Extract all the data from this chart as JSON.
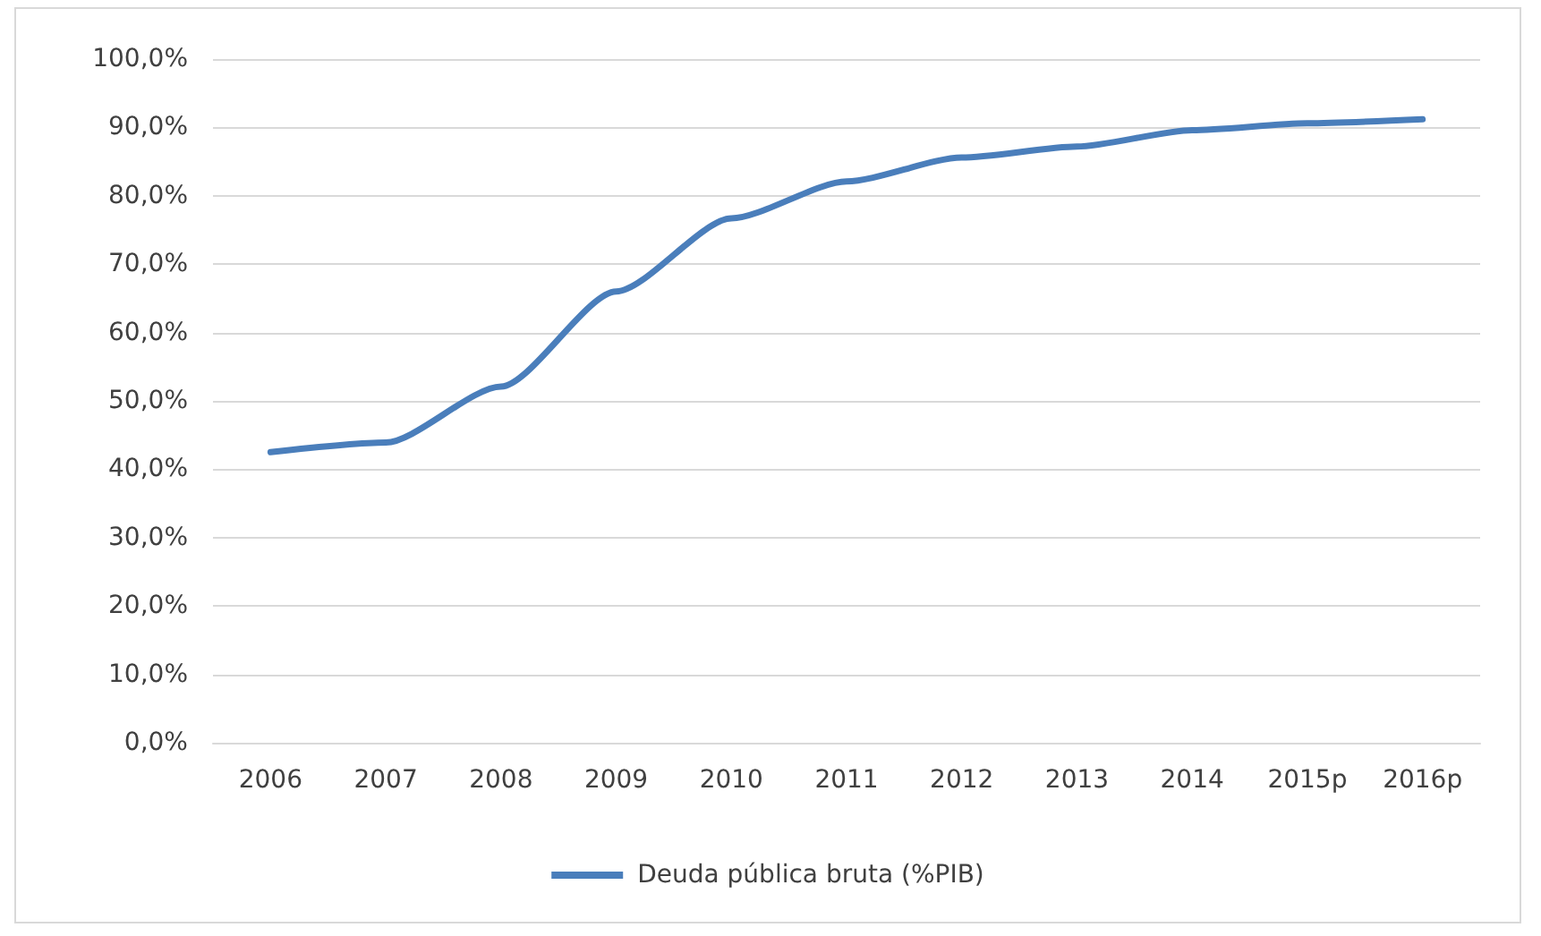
{
  "chart_data": {
    "type": "line",
    "categories": [
      "2006",
      "2007",
      "2008",
      "2009",
      "2010",
      "2011",
      "2012",
      "2013",
      "2014",
      "2015p",
      "2016p"
    ],
    "series": [
      {
        "name": "Deuda pública bruta (%PIB)",
        "color": "#4a7ebb",
        "values": [
          42.5,
          43.9,
          52.1,
          66.0,
          76.7,
          82.1,
          85.6,
          87.2,
          89.6,
          90.6,
          91.2
        ]
      }
    ],
    "ylim": [
      0,
      100
    ],
    "yticks": [
      {
        "value": 0,
        "label": "0,0%"
      },
      {
        "value": 10,
        "label": "10,0%"
      },
      {
        "value": 20,
        "label": "20,0%"
      },
      {
        "value": 30,
        "label": "30,0%"
      },
      {
        "value": 40,
        "label": "40,0%"
      },
      {
        "value": 50,
        "label": "50,0%"
      },
      {
        "value": 60,
        "label": "60,0%"
      },
      {
        "value": 70,
        "label": "70,0%"
      },
      {
        "value": 80,
        "label": "80,0%"
      },
      {
        "value": 90,
        "label": "90,0%"
      },
      {
        "value": 100,
        "label": "100,0%"
      }
    ],
    "grid": "y",
    "legend": "bottom",
    "marker": "none",
    "line_style": "solid"
  }
}
